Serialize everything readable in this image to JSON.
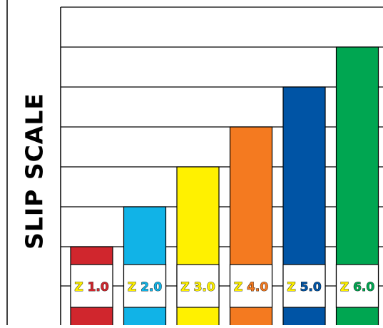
{
  "chart_data": {
    "type": "bar",
    "title": "",
    "xlabel": "",
    "ylabel": "SLIP SCALE",
    "ylim": [
      0,
      7
    ],
    "grid": true,
    "categories": [
      "Z 1.0",
      "Z 2.0",
      "Z 3.0",
      "Z 4.0",
      "Z 5.0",
      "Z 6.0"
    ],
    "prefixes": [
      "Z",
      "Z",
      "Z",
      "Z",
      "Z",
      "Z"
    ],
    "numbers": [
      "1.0",
      "2.0",
      "3.0",
      "4.0",
      "5.0",
      "6.0"
    ],
    "values": [
      1.0,
      2.0,
      3.0,
      4.0,
      5.0,
      6.0
    ],
    "colors": [
      "#d0262d",
      "#11b3e7",
      "#fff100",
      "#f47a20",
      "#0054a5",
      "#00a651"
    ],
    "label_prefix_color": "#fff100",
    "label_text_colors": [
      "#d0262d",
      "#11b3e7",
      "#fff100",
      "#f47a20",
      "#0054a5",
      "#00a651"
    ]
  }
}
